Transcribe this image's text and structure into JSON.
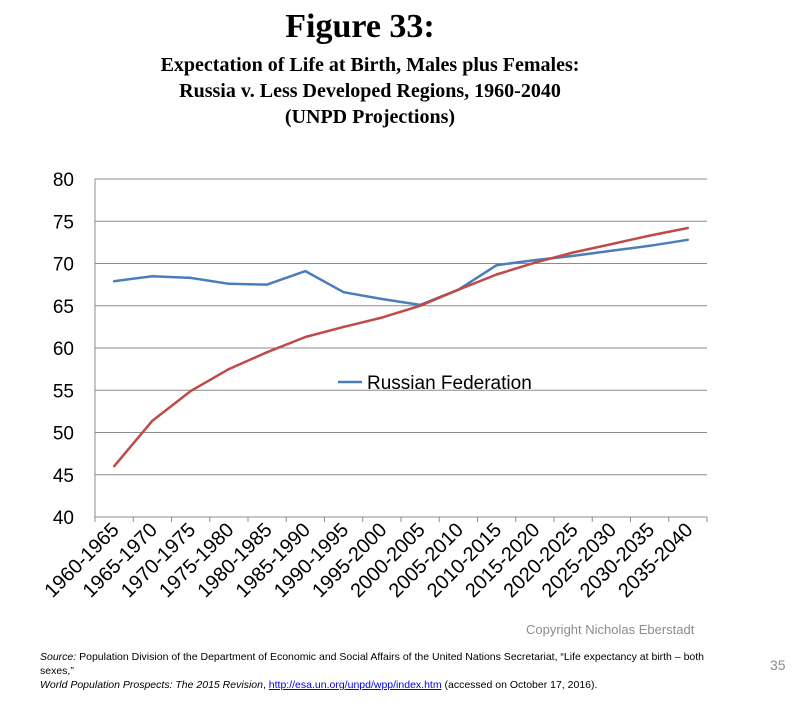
{
  "figure": {
    "title": "Figure 33:",
    "subtitle_lines": [
      "Expectation of Life at Birth, Males plus Females:",
      "Russia v. Less Developed Regions, 1960-2040",
      "(UNPD Projections)"
    ]
  },
  "chart_data": {
    "type": "line",
    "categories": [
      "1960-1965",
      "1965-1970",
      "1970-1975",
      "1975-1980",
      "1980-1985",
      "1985-1990",
      "1990-1995",
      "1995-2000",
      "2000-2005",
      "2005-2010",
      "2010-2015",
      "2015-2020",
      "2020-2025",
      "2025-2030",
      "2030-2035",
      "2035-2040"
    ],
    "ylim": [
      40,
      80
    ],
    "yticks": [
      40,
      45,
      50,
      55,
      60,
      65,
      70,
      75,
      80
    ],
    "grid": true,
    "legend_position": "center",
    "series": [
      {
        "name": "Russian Federation",
        "color": "#4a7ebb",
        "values": [
          67.9,
          68.5,
          68.3,
          67.6,
          67.5,
          69.1,
          66.6,
          65.8,
          65.1,
          66.9,
          69.8,
          70.4,
          70.9,
          71.5,
          72.1,
          72.8
        ]
      },
      {
        "name": "",
        "color": "#be4b48",
        "values": [
          46.0,
          51.4,
          54.9,
          57.5,
          59.5,
          61.3,
          62.5,
          63.6,
          65.0,
          66.9,
          68.7,
          70.1,
          71.3,
          72.3,
          73.3,
          74.2
        ]
      }
    ]
  },
  "footer": {
    "copyright": "Copyright Nicholas Eberstadt",
    "source_label": "Source:",
    "source_text": " Population Division of the Department of Economic and Social Affairs of the United Nations Secretariat, “Life expectancy at birth – both sexes,”",
    "wpp_title": "World Population Prospects: The 2015 Revision",
    "wpp_sep": ", ",
    "url": "http://esa.un.org/unpd/wpp/index.htm",
    "accessed": " (accessed on October 17, 2016).",
    "page_number": "35"
  }
}
